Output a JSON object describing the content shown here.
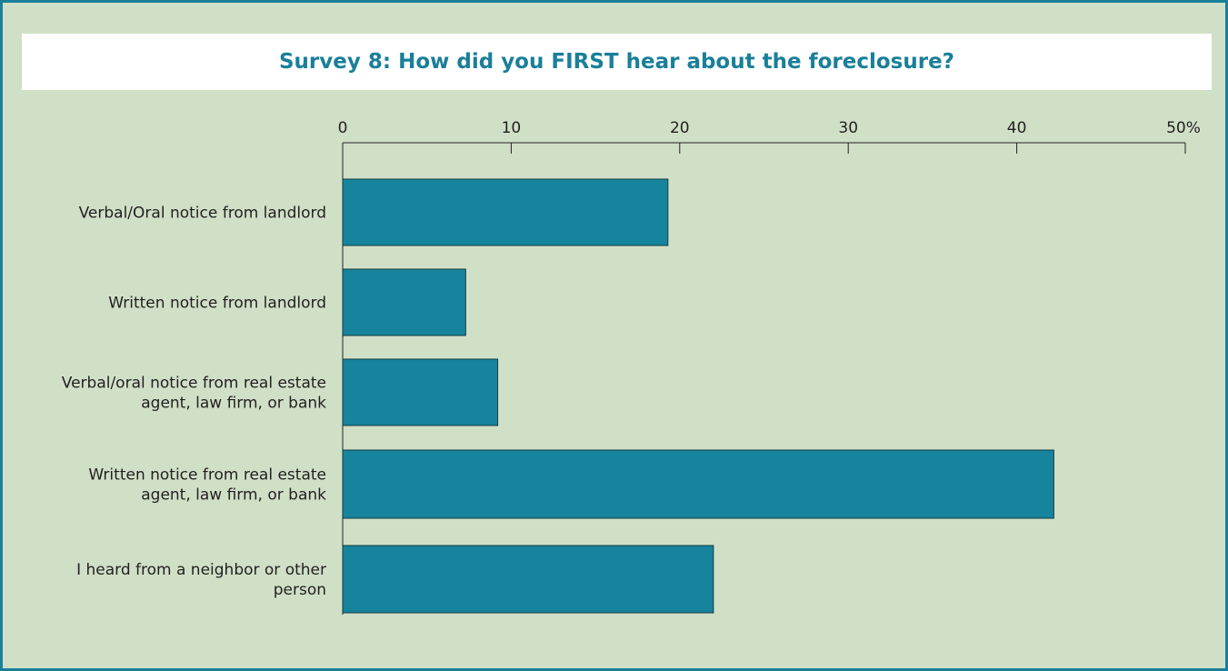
{
  "chart_data": {
    "type": "bar",
    "orientation": "horizontal",
    "title": "Survey 8: How did you FIRST hear about the foreclosure?",
    "xlabel": "",
    "ylabel": "",
    "categories": [
      [
        "Verbal/Oral notice from landlord"
      ],
      [
        "Written notice from landlord"
      ],
      [
        "Verbal/oral notice from real estate",
        "agent, law firm, or bank"
      ],
      [
        "Written notice from real estate",
        "agent, law firm, or bank"
      ],
      [
        "I heard from a neighbor or other",
        "person"
      ]
    ],
    "values": [
      19.3,
      7.3,
      9.2,
      42.2,
      22.0
    ],
    "xlim": [
      0,
      50
    ],
    "tick_values": [
      0,
      10,
      20,
      30,
      40,
      50
    ],
    "tick_labels": [
      "0",
      "10",
      "20",
      "30",
      "40",
      "50%"
    ],
    "axis_position": "top",
    "grid": false,
    "legend": "none",
    "colors": {
      "bar_fill": "#16849c",
      "bar_stroke": "#163a42",
      "panel_background": "#d0e0c7",
      "frame_border": "#1a7f99",
      "title_color": "#1a7f99",
      "text_color": "#231f20"
    }
  }
}
